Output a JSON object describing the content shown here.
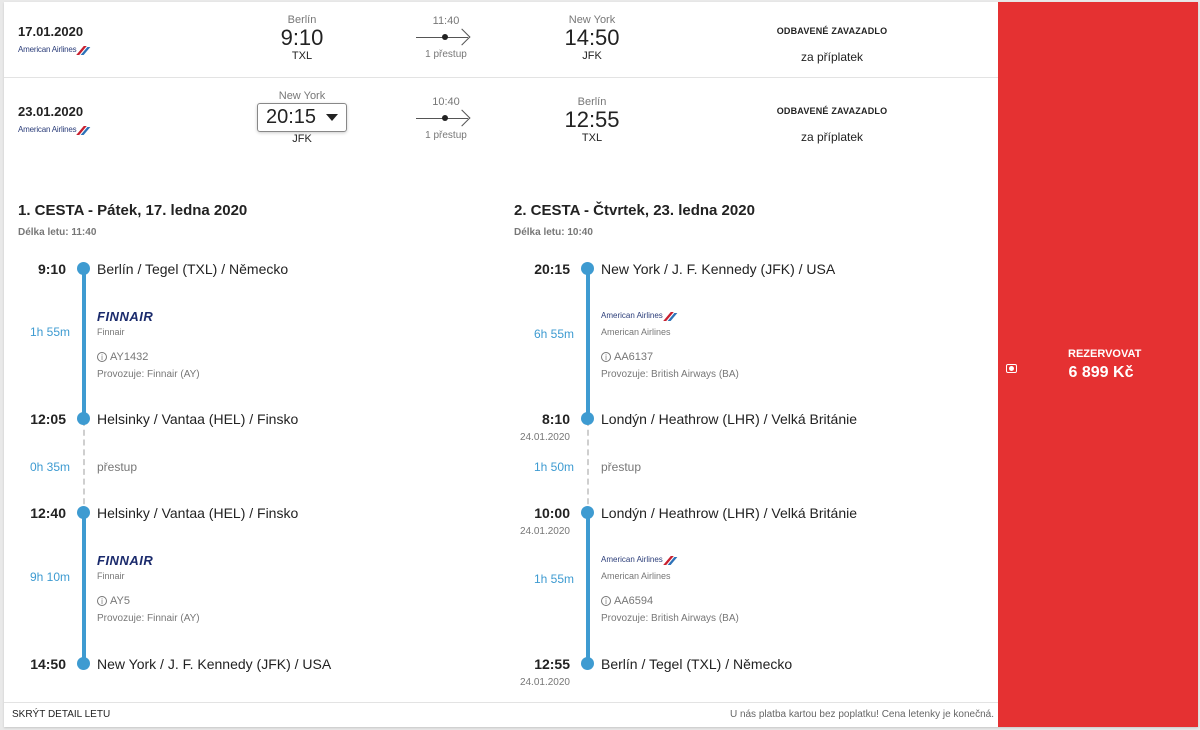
{
  "outbound_summary": {
    "date": "17.01.2020",
    "airline": "American Airlines",
    "from_city": "Berlín",
    "dep_time": "9:10",
    "from_code": "TXL",
    "duration": "11:40",
    "stops": "1 přestup",
    "to_city": "New York",
    "arr_time": "14:50",
    "to_code": "JFK",
    "baggage_title": "ODBAVENÉ ZAVAZADLO",
    "baggage_note": "za příplatek"
  },
  "return_summary": {
    "date": "23.01.2020",
    "airline": "American Airlines",
    "from_city": "New York",
    "dep_time_selected": "20:15",
    "from_code": "JFK",
    "duration": "10:40",
    "stops": "1 přestup",
    "to_city": "Berlín",
    "arr_time": "12:55",
    "to_code": "TXL",
    "baggage_title": "ODBAVENÉ ZAVAZADLO",
    "baggage_note": "za příplatek"
  },
  "leg1": {
    "heading": "1. CESTA - Pátek, 17. ledna 2020",
    "length": "Délka letu: 11:40",
    "stops": [
      {
        "time": "9:10",
        "date": "",
        "name": "Berlín / Tegel (TXL) / Německo"
      },
      {
        "time": "12:05",
        "date": "",
        "name": "Helsinky / Vantaa (HEL) / Finsko"
      },
      {
        "time": "12:40",
        "date": "",
        "name": "Helsinky / Vantaa (HEL) / Finsko"
      },
      {
        "time": "14:50",
        "date": "",
        "name": "New York / J. F. Kennedy (JFK) / USA"
      }
    ],
    "flights": [
      {
        "duration": "1h 55m",
        "logo": "FINNAIR",
        "airline": "Finnair",
        "number": "AY1432",
        "operated": "Provozuje: Finnair (AY)"
      },
      {
        "duration": "9h 10m",
        "logo": "FINNAIR",
        "airline": "Finnair",
        "number": "AY5",
        "operated": "Provozuje: Finnair (AY)"
      }
    ],
    "transfer": {
      "duration": "0h 35m",
      "label": "přestup"
    }
  },
  "leg2": {
    "heading": "2. CESTA - Čtvrtek, 23. ledna 2020",
    "length": "Délka letu: 10:40",
    "stops": [
      {
        "time": "20:15",
        "date": "",
        "name": "New York / J. F. Kennedy (JFK) / USA"
      },
      {
        "time": "8:10",
        "date": "24.01.2020",
        "name": "Londýn / Heathrow (LHR) / Velká Británie"
      },
      {
        "time": "10:00",
        "date": "24.01.2020",
        "name": "Londýn / Heathrow (LHR) / Velká Británie"
      },
      {
        "time": "12:55",
        "date": "24.01.2020",
        "name": "Berlín / Tegel (TXL) / Německo"
      }
    ],
    "flights": [
      {
        "duration": "6h 55m",
        "logo": "American Airlines",
        "airline": "American Airlines",
        "number": "AA6137",
        "operated": "Provozuje: British Airways (BA)"
      },
      {
        "duration": "1h 55m",
        "logo": "American Airlines",
        "airline": "American Airlines",
        "number": "AA6594",
        "operated": "Provozuje: British Airways (BA)"
      }
    ],
    "transfer": {
      "duration": "1h 50m",
      "label": "přestup"
    }
  },
  "footer": {
    "hide_detail": "SKRÝT DETAIL LETU",
    "note": "U nás platba kartou bez poplatku! Cena letenky je konečná."
  },
  "booking": {
    "label": "REZERVOVAT",
    "price": "6 899 Kč",
    "accent_color": "#e53132"
  },
  "colors": {
    "timeline": "#3e9bd1"
  },
  "icons": [
    "american-airlines-logo",
    "info-icon",
    "dropdown-triangle-icon",
    "wallet-icon",
    "arrow-icon"
  ]
}
